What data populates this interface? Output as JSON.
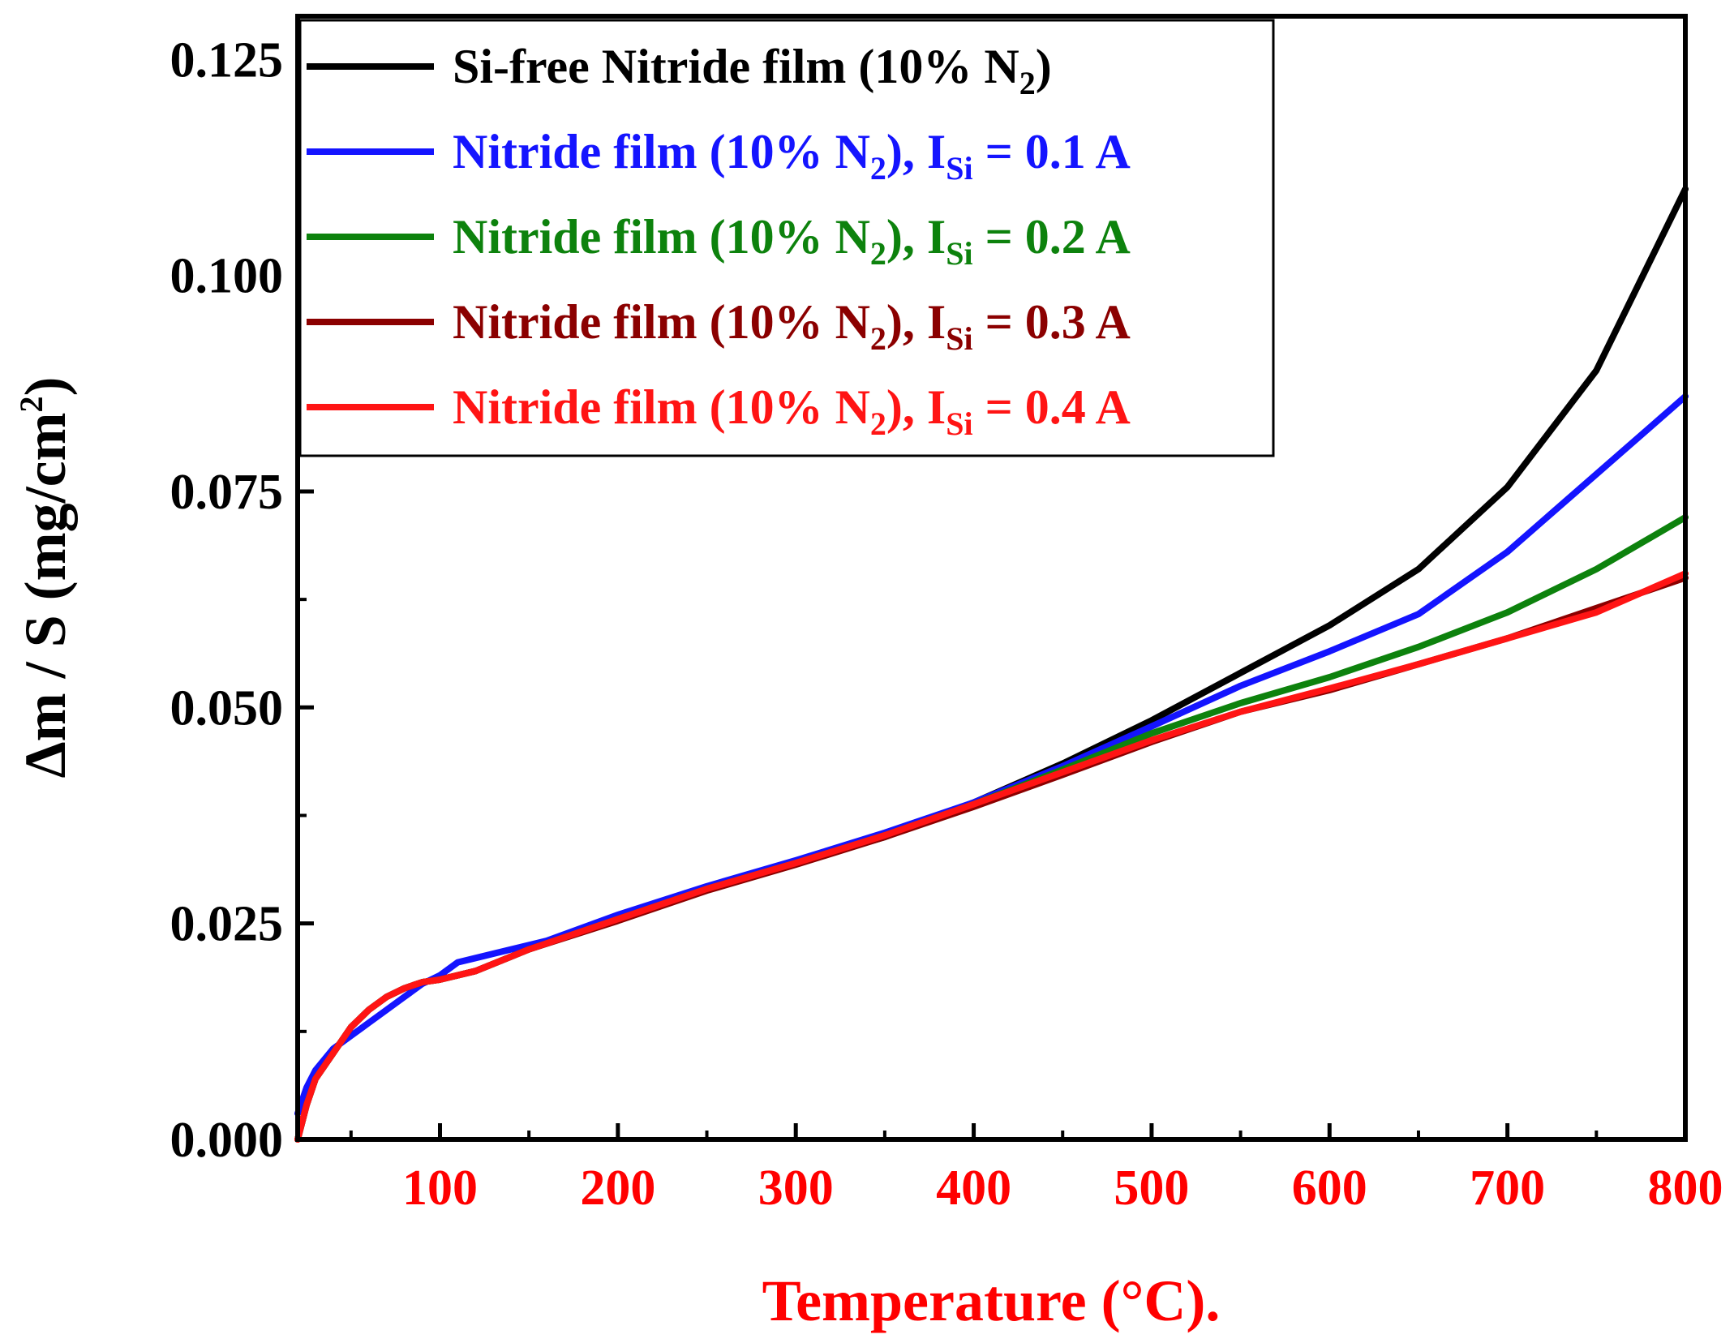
{
  "chart_data": {
    "type": "line",
    "title": "",
    "xlabel": "Temperature (°C).",
    "ylabel_parts": {
      "main": "Δm / S (mg/cm",
      "sup": "2",
      "end": ")"
    },
    "xlim": [
      20,
      800
    ],
    "ylim": [
      0,
      0.13
    ],
    "xticks": [
      100,
      200,
      300,
      400,
      500,
      600,
      700,
      800
    ],
    "xtick_labels": [
      "100",
      "200",
      "300",
      "400",
      "500",
      "600",
      "700",
      "800"
    ],
    "yticks": [
      0,
      0.025,
      0.05,
      0.075,
      0.1,
      0.125
    ],
    "ytick_labels": [
      "0.000",
      "0.025",
      "0.050",
      "0.075",
      "0.100",
      "0.125"
    ],
    "grid": false,
    "legend_position": "top-left",
    "colors": {
      "axis": "#000000",
      "xaxis_labels": "#ff0000"
    },
    "series": [
      {
        "name": "Si-free Nitride film (10% N2)",
        "label": {
          "pre": "Si-free Nitride film (10% N",
          "sub": "2",
          "post": ")",
          "i": "",
          "isub": "",
          "tail": ""
        },
        "color": "#000000",
        "x": [
          20,
          25,
          30,
          40,
          50,
          60,
          70,
          80,
          90,
          100,
          120,
          150,
          200,
          250,
          300,
          350,
          400,
          450,
          500,
          550,
          600,
          650,
          700,
          750,
          800
        ],
        "y": [
          0.0,
          0.004,
          0.007,
          0.01,
          0.013,
          0.015,
          0.0165,
          0.0175,
          0.0182,
          0.0185,
          0.0195,
          0.022,
          0.0255,
          0.029,
          0.032,
          0.035,
          0.039,
          0.0435,
          0.0485,
          0.054,
          0.0595,
          0.066,
          0.0755,
          0.089,
          0.11
        ]
      },
      {
        "name": "Nitride film (10% N2), ISi = 0.1 A",
        "label": {
          "pre": "Nitride film (10% N",
          "sub": "2",
          "post": "), ",
          "i": "I",
          "isub": "Si",
          "tail": " = 0.1 A"
        },
        "color": "#1414ff",
        "x": [
          20,
          25,
          30,
          40,
          50,
          60,
          70,
          80,
          90,
          100,
          110,
          120,
          140,
          160,
          200,
          250,
          300,
          350,
          400,
          450,
          500,
          550,
          600,
          650,
          700,
          750,
          800
        ],
        "y": [
          0.003,
          0.006,
          0.008,
          0.0105,
          0.012,
          0.0135,
          0.015,
          0.0165,
          0.018,
          0.019,
          0.0205,
          0.021,
          0.022,
          0.023,
          0.026,
          0.0293,
          0.0323,
          0.0355,
          0.039,
          0.0432,
          0.0478,
          0.0525,
          0.0565,
          0.0608,
          0.068,
          0.077,
          0.086
        ]
      },
      {
        "name": "Nitride film (10% N2), ISi = 0.2 A",
        "label": {
          "pre": "Nitride film (10% N",
          "sub": "2",
          "post": "), ",
          "i": "I",
          "isub": "Si",
          "tail": " = 0.2 A"
        },
        "color": "#0d820d",
        "x": [
          20,
          25,
          30,
          40,
          50,
          60,
          70,
          80,
          90,
          100,
          120,
          150,
          200,
          250,
          300,
          350,
          400,
          450,
          500,
          550,
          600,
          650,
          700,
          750,
          800
        ],
        "y": [
          0.0,
          0.004,
          0.007,
          0.01,
          0.013,
          0.015,
          0.0165,
          0.0175,
          0.0182,
          0.0185,
          0.0195,
          0.022,
          0.0255,
          0.029,
          0.032,
          0.0352,
          0.0388,
          0.0428,
          0.047,
          0.0505,
          0.0535,
          0.057,
          0.061,
          0.066,
          0.072
        ]
      },
      {
        "name": "Nitride film (10% N2), ISi = 0.3 A",
        "label": {
          "pre": "Nitride film (10% N",
          "sub": "2",
          "post": "), ",
          "i": "I",
          "isub": "Si",
          "tail": " = 0.3 A"
        },
        "color": "#8b0000",
        "x": [
          20,
          25,
          30,
          40,
          50,
          60,
          70,
          80,
          90,
          100,
          120,
          150,
          200,
          250,
          300,
          350,
          400,
          450,
          500,
          550,
          600,
          650,
          700,
          750,
          800
        ],
        "y": [
          0.0,
          0.004,
          0.007,
          0.01,
          0.013,
          0.015,
          0.0165,
          0.0175,
          0.0182,
          0.0185,
          0.0195,
          0.022,
          0.0253,
          0.0288,
          0.0318,
          0.035,
          0.0385,
          0.0422,
          0.046,
          0.0495,
          0.052,
          0.055,
          0.058,
          0.0615,
          0.065
        ]
      },
      {
        "name": "Nitride film (10% N2), ISi = 0.4 A",
        "label": {
          "pre": "Nitride film (10% N",
          "sub": "2",
          "post": "), ",
          "i": "I",
          "isub": "Si",
          "tail": " = 0.4 A"
        },
        "color": "#ff1414",
        "x": [
          20,
          25,
          30,
          40,
          50,
          60,
          70,
          80,
          90,
          100,
          120,
          150,
          200,
          250,
          300,
          350,
          400,
          450,
          500,
          550,
          600,
          650,
          700,
          750,
          800
        ],
        "y": [
          0.0,
          0.004,
          0.007,
          0.01,
          0.013,
          0.015,
          0.0165,
          0.0175,
          0.0182,
          0.0185,
          0.0195,
          0.022,
          0.0255,
          0.029,
          0.032,
          0.0352,
          0.0388,
          0.0425,
          0.0462,
          0.0495,
          0.0522,
          0.055,
          0.058,
          0.061,
          0.0655
        ]
      }
    ]
  }
}
